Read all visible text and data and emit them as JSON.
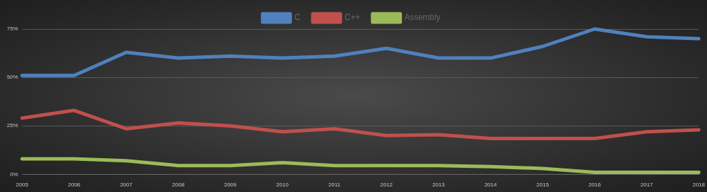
{
  "chart_data": {
    "type": "line",
    "categories": [
      "2005",
      "2006",
      "2007",
      "2008",
      "2009",
      "2010",
      "2011",
      "2012",
      "2013",
      "2014",
      "2015",
      "2016",
      "2017",
      "2018"
    ],
    "series": [
      {
        "name": "C",
        "color": "#4f81bd",
        "values": [
          51,
          51,
          63,
          60,
          61,
          60,
          61,
          65,
          60,
          60,
          66,
          75,
          71,
          70
        ]
      },
      {
        "name": "C++",
        "color": "#c0504d",
        "values": [
          29,
          33,
          23.5,
          26.5,
          25,
          22,
          23.5,
          20,
          20.5,
          18.5,
          18.5,
          18.5,
          22,
          23
        ]
      },
      {
        "name": "Assembly",
        "color": "#9bbb59",
        "values": [
          8,
          8,
          7,
          4.5,
          4.5,
          6,
          4.5,
          4.5,
          4.5,
          4,
          3,
          1,
          1,
          1
        ]
      }
    ],
    "ylim": [
      0,
      75
    ],
    "yticks": [
      {
        "value": 0,
        "label": "0%"
      },
      {
        "value": 25,
        "label": "25%"
      },
      {
        "value": 50,
        "label": "50%"
      },
      {
        "value": 75,
        "label": "75%"
      }
    ],
    "grid": "y",
    "legend": "top",
    "marker": "none",
    "line_style": "solid"
  }
}
